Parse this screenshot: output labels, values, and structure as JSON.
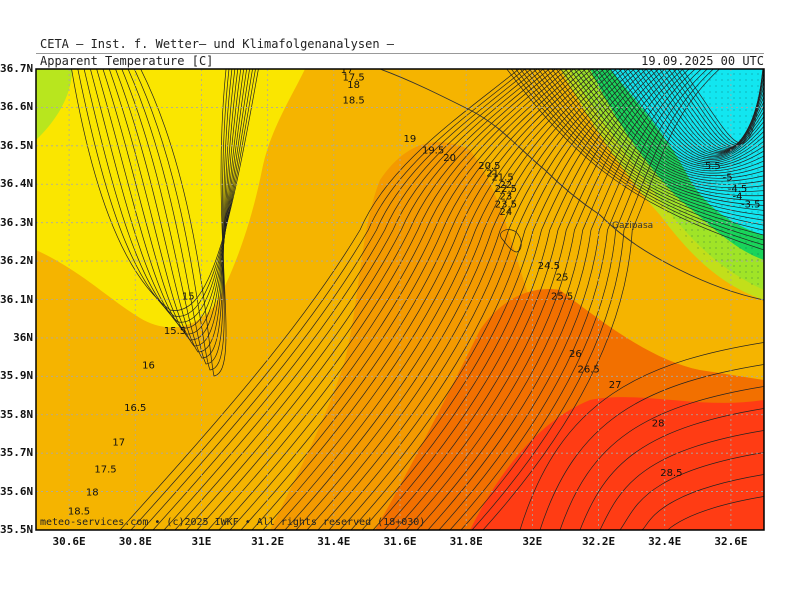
{
  "header": {
    "title": "CETA – Inst. f. Wetter– und Klimafolgenanalysen –",
    "parameter": "Apparent Temperature [C]",
    "datetime": "19.09.2025 00 UTC"
  },
  "footer": {
    "credit": "meteo-services.com • (c)2025 IWKF • All rights reserved (18+030)"
  },
  "axes": {
    "lat_labels": [
      "36.7N",
      "36.6N",
      "36.5N",
      "36.4N",
      "36.3N",
      "36.2N",
      "36.1N",
      "36N",
      "35.9N",
      "35.8N",
      "35.7N",
      "35.6N",
      "35.5N"
    ],
    "lon_labels": [
      "30.6E",
      "30.8E",
      "31E",
      "31.2E",
      "31.4E",
      "31.6E",
      "31.8E",
      "32E",
      "32.2E",
      "32.4E",
      "32.6E"
    ]
  },
  "map": {
    "city": "Gazipasa",
    "colors": {
      "cyan": "#12e6f0",
      "green": "#19d45a",
      "yellowgreen": "#b8e61e",
      "yellow": "#fae600",
      "amber": "#f5b400",
      "orange": "#f49a00",
      "deeporange": "#f27000",
      "red": "#ff3c14"
    },
    "contour_labels": [
      {
        "text": "17",
        "lon": 31.44,
        "lat": 36.69
      },
      {
        "text": "17.5",
        "lon": 31.46,
        "lat": 36.67
      },
      {
        "text": "18",
        "lon": 31.46,
        "lat": 36.65
      },
      {
        "text": "18.5",
        "lon": 31.46,
        "lat": 36.61
      },
      {
        "text": "19",
        "lon": 31.63,
        "lat": 36.51
      },
      {
        "text": "19.5",
        "lon": 31.7,
        "lat": 36.48
      },
      {
        "text": "20",
        "lon": 31.75,
        "lat": 36.46
      },
      {
        "text": "20.5",
        "lon": 31.87,
        "lat": 36.44
      },
      {
        "text": "21",
        "lon": 31.88,
        "lat": 36.42
      },
      {
        "text": "21.5",
        "lon": 31.91,
        "lat": 36.41
      },
      {
        "text": "22",
        "lon": 31.92,
        "lat": 36.39
      },
      {
        "text": "22.5",
        "lon": 31.92,
        "lat": 36.38
      },
      {
        "text": "23",
        "lon": 31.92,
        "lat": 36.36
      },
      {
        "text": "23.5",
        "lon": 31.92,
        "lat": 36.34
      },
      {
        "text": "24",
        "lon": 31.92,
        "lat": 36.32
      },
      {
        "text": "24.5",
        "lon": 32.05,
        "lat": 36.18
      },
      {
        "text": "25",
        "lon": 32.09,
        "lat": 36.15
      },
      {
        "text": "25.5",
        "lon": 32.09,
        "lat": 36.1
      },
      {
        "text": "26",
        "lon": 32.13,
        "lat": 35.95
      },
      {
        "text": "26.5",
        "lon": 32.17,
        "lat": 35.91
      },
      {
        "text": "27",
        "lon": 32.25,
        "lat": 35.87
      },
      {
        "text": "28",
        "lon": 32.38,
        "lat": 35.77
      },
      {
        "text": "28.5",
        "lon": 32.42,
        "lat": 35.64
      },
      {
        "text": "15",
        "lon": 30.96,
        "lat": 36.1
      },
      {
        "text": "15.5",
        "lon": 30.92,
        "lat": 36.01
      },
      {
        "text": "16",
        "lon": 30.84,
        "lat": 35.92
      },
      {
        "text": "16.5",
        "lon": 30.8,
        "lat": 35.81
      },
      {
        "text": "17",
        "lon": 30.75,
        "lat": 35.72
      },
      {
        "text": "17.5",
        "lon": 30.71,
        "lat": 35.65
      },
      {
        "text": "18",
        "lon": 30.67,
        "lat": 35.59
      },
      {
        "text": "18.5",
        "lon": 30.63,
        "lat": 35.54
      },
      {
        "text": "-5.5",
        "lon": 32.54,
        "lat": 36.44
      },
      {
        "text": "-5",
        "lon": 32.59,
        "lat": 36.41
      },
      {
        "text": "-4.5",
        "lon": 32.62,
        "lat": 36.38
      },
      {
        "text": "-4",
        "lon": 32.62,
        "lat": 36.36
      },
      {
        "text": "-3.5",
        "lon": 32.66,
        "lat": 36.34
      }
    ]
  }
}
